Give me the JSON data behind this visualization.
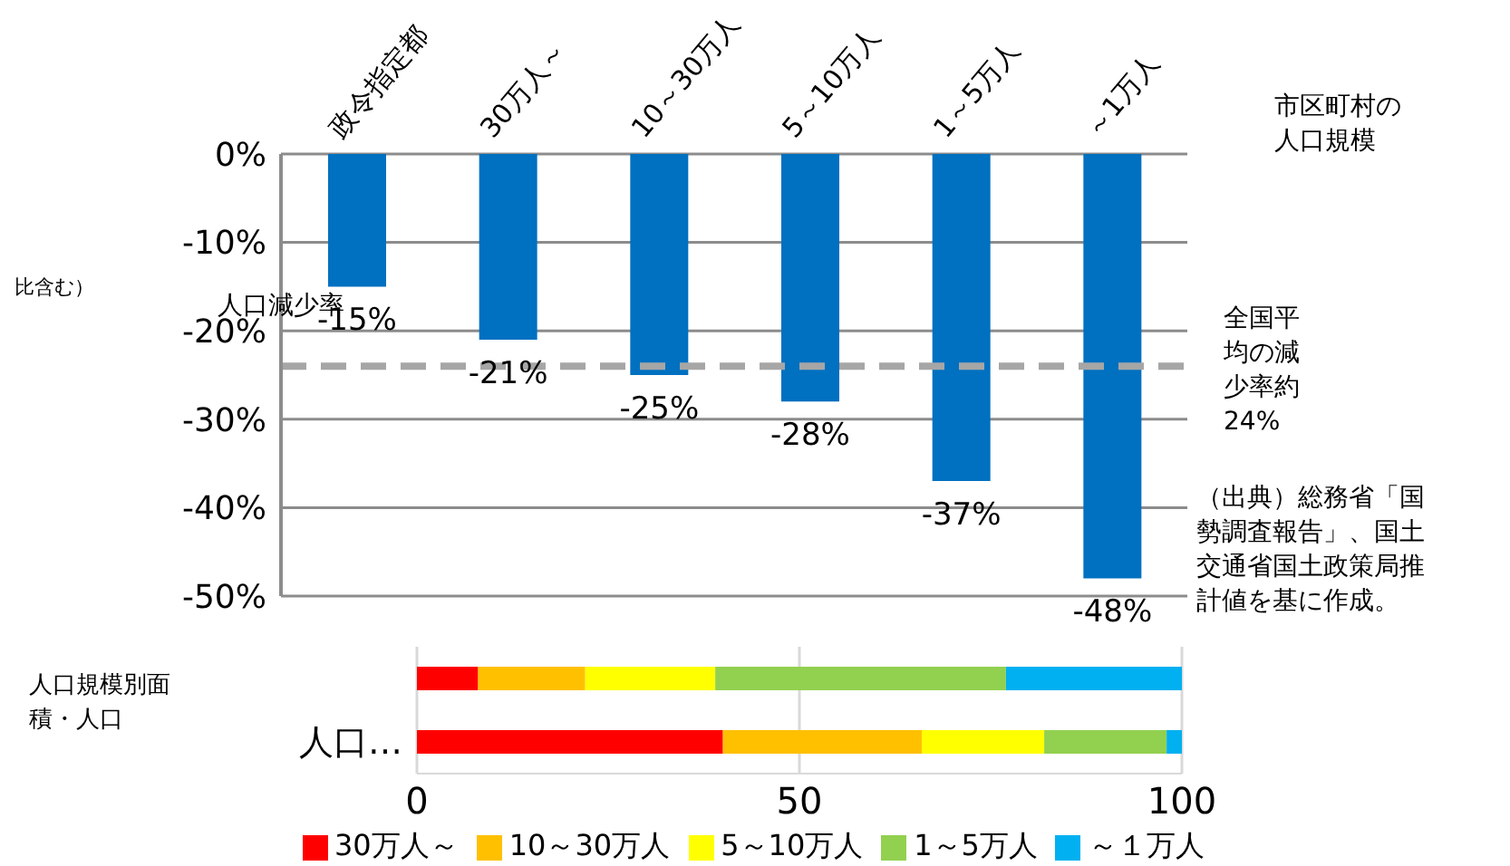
{
  "chart_data": [
    {
      "type": "bar",
      "categories": [
        "政令指定都",
        "30万人～",
        "10～30万人",
        "5～10万人",
        "1～5万人",
        "～1万人"
      ],
      "values": [
        -15,
        -21,
        -25,
        -28,
        -37,
        -48
      ],
      "value_labels": [
        "-15%",
        "-21%",
        "-25%",
        "-28%",
        "-37%",
        "-48%"
      ],
      "color": "#0070c0",
      "ylim": [
        -50,
        0
      ],
      "yticks": [
        {
          "value": 0,
          "label": "0%"
        },
        {
          "value": -10,
          "label": "-10%"
        },
        {
          "value": -20,
          "label": "-20%"
        },
        {
          "value": -30,
          "label": "-30%"
        },
        {
          "value": -40,
          "label": "-40%"
        },
        {
          "value": -50,
          "label": "-50%"
        }
      ],
      "grid": "y",
      "xlabel": "市区町村の人口規模",
      "ylabel": "人口減少率",
      "ref_lines": [
        {
          "axis": "y",
          "value": -24,
          "label": "全国平均の減少率約24%",
          "color": "#a6a6a6",
          "line_style": "dashed"
        }
      ],
      "annotations": [
        "比含む）",
        "（出典）総務省「国勢調査報告」、国土交通省国土政策局推計値を基に作成。"
      ]
    },
    {
      "type": "bar",
      "orientation": "horizontal",
      "stacked": true,
      "categories": [
        null,
        "人口…"
      ],
      "ylabel": "人口規模別面積・人口",
      "xlim": [
        0,
        100
      ],
      "xticks": [
        0,
        50,
        100
      ],
      "grid": "x",
      "legend": "bottom",
      "series": [
        {
          "name": "30万人～",
          "color": "#ff0000",
          "values": [
            8,
            40
          ]
        },
        {
          "name": "10～30万人",
          "color": "#ffc000",
          "values": [
            14,
            26
          ]
        },
        {
          "name": "5～10万人",
          "color": "#ffff00",
          "values": [
            17,
            16
          ]
        },
        {
          "name": "1～5万人",
          "color": "#92d050",
          "values": [
            38,
            16
          ]
        },
        {
          "name": "～１万人",
          "color": "#00b0f0",
          "values": [
            23,
            2
          ]
        }
      ]
    }
  ]
}
